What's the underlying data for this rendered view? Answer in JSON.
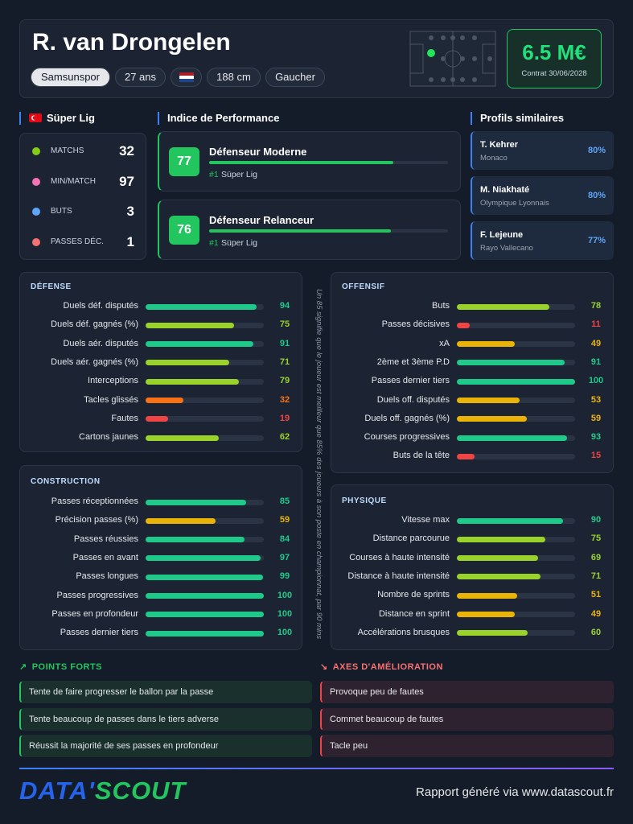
{
  "header": {
    "name": "R. van Drongelen",
    "club": "Samsunspor",
    "age": "27 ans",
    "height": "188 cm",
    "foot": "Gaucher",
    "value": "6.5 M€",
    "contract": "Contrat 30/06/2028"
  },
  "league": {
    "title": "Süper Lig",
    "stats": [
      {
        "label": "MATCHS",
        "value": 32
      },
      {
        "label": "MIN/MATCH",
        "value": 97
      },
      {
        "label": "BUTS",
        "value": 3
      },
      {
        "label": "PASSES DÉC.",
        "value": 1
      }
    ]
  },
  "performance": {
    "title": "Indice de Performance",
    "items": [
      {
        "score": 77,
        "role": "Défenseur Moderne",
        "rank": "#1",
        "league": "Süper Lig"
      },
      {
        "score": 76,
        "role": "Défenseur Relanceur",
        "rank": "#1",
        "league": "Süper Lig"
      }
    ]
  },
  "similar": {
    "title": "Profils similaires",
    "profiles": [
      {
        "name": "T. Kehrer",
        "club": "Monaco",
        "similarity": "80%"
      },
      {
        "name": "M. Niakhaté",
        "club": "Olympique Lyonnais",
        "similarity": "80%"
      },
      {
        "name": "F. Lejeune",
        "club": "Rayo Vallecano",
        "similarity": "77%"
      }
    ]
  },
  "bar_range": [
    0,
    100
  ],
  "sections": [
    {
      "title": "DÉFENSE",
      "stats": [
        {
          "label": "Duels déf. disputés",
          "value": 94
        },
        {
          "label": "Duels déf. gagnés (%)",
          "value": 75
        },
        {
          "label": "Duels aér. disputés",
          "value": 91
        },
        {
          "label": "Duels aér. gagnés (%)",
          "value": 71
        },
        {
          "label": "Interceptions",
          "value": 79
        },
        {
          "label": "Tacles glissés",
          "value": 32
        },
        {
          "label": "Fautes",
          "value": 19
        },
        {
          "label": "Cartons jaunes",
          "value": 62
        }
      ]
    },
    {
      "title": "CONSTRUCTION",
      "stats": [
        {
          "label": "Passes réceptionnées",
          "value": 85
        },
        {
          "label": "Précision passes (%)",
          "value": 59
        },
        {
          "label": "Passes réussies",
          "value": 84
        },
        {
          "label": "Passes en avant",
          "value": 97
        },
        {
          "label": "Passes longues",
          "value": 99
        },
        {
          "label": "Passes progressives",
          "value": 100
        },
        {
          "label": "Passes en profondeur",
          "value": 100
        },
        {
          "label": "Passes dernier tiers",
          "value": 100
        }
      ]
    },
    {
      "title": "OFFENSIF",
      "stats": [
        {
          "label": "Buts",
          "value": 78
        },
        {
          "label": "Passes décisives",
          "value": 11
        },
        {
          "label": "xA",
          "value": 49
        },
        {
          "label": "2ème et 3ème P.D",
          "value": 91
        },
        {
          "label": "Passes dernier tiers",
          "value": 100
        },
        {
          "label": "Duels off. disputés",
          "value": 53
        },
        {
          "label": "Duels off. gagnés (%)",
          "value": 59
        },
        {
          "label": "Courses progressives",
          "value": 93
        },
        {
          "label": "Buts de la tête",
          "value": 15
        }
      ]
    },
    {
      "title": "PHYSIQUE",
      "stats": [
        {
          "label": "Vitesse max",
          "value": 90
        },
        {
          "label": "Distance parcourue",
          "value": 75
        },
        {
          "label": "Courses à haute intensité",
          "value": 69
        },
        {
          "label": "Distance à haute intensité",
          "value": 71
        },
        {
          "label": "Nombre de sprints",
          "value": 51
        },
        {
          "label": "Distance en sprint",
          "value": 49
        },
        {
          "label": "Accélérations brusques",
          "value": 60
        }
      ]
    }
  ],
  "note": "Un 85 signifie que le joueur est meilleur que 85% des joueurs à son poste en championnat, par 90 mins",
  "strengths": {
    "title": "POINTS FORTS",
    "items": [
      "Tente de faire progresser le ballon par la passe",
      "Tente beaucoup de passes dans le tiers adverse",
      "Réussit la majorité de ses passes en profondeur"
    ]
  },
  "weaknesses": {
    "title": "AXES D'AMÉLIORATION",
    "items": [
      "Provoque peu de fautes",
      "Commet beaucoup de fautes",
      "Tacle peu"
    ]
  },
  "footer": {
    "logo_left": "DATA'",
    "logo_right": "SCOUT",
    "credit": "Rapport généré via www.datascout.fr"
  }
}
